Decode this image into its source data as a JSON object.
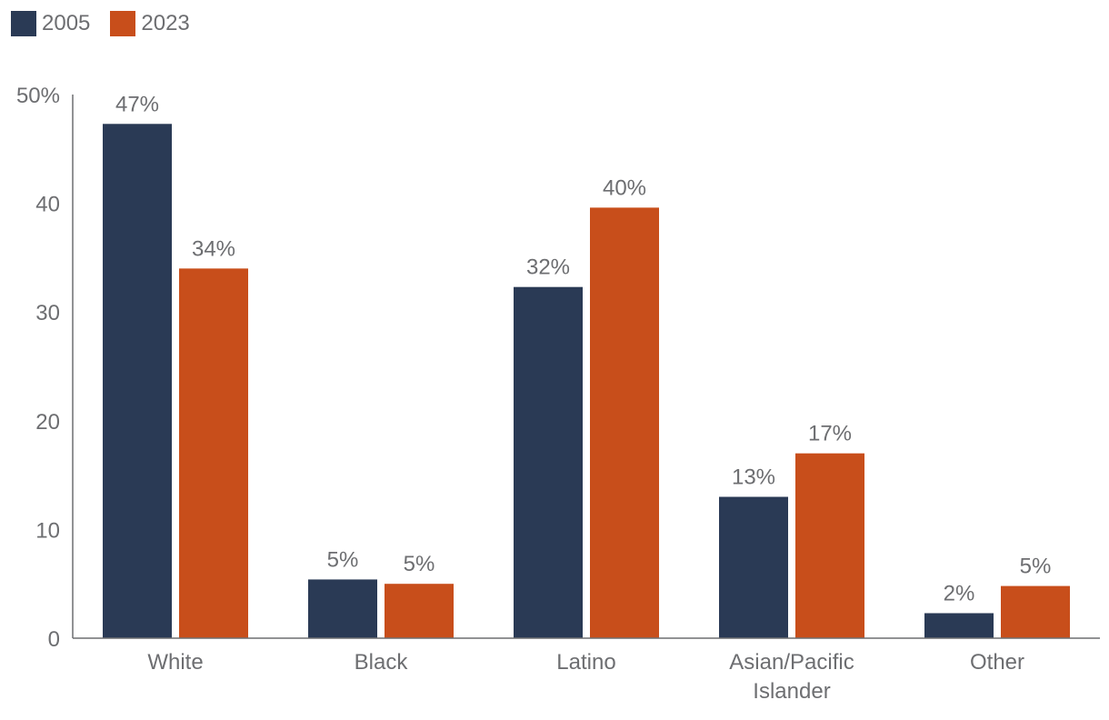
{
  "legend": [
    {
      "label": "2005",
      "color": "#2a3a55"
    },
    {
      "label": "2023",
      "color": "#c84e1b"
    }
  ],
  "chart_data": {
    "type": "bar",
    "categories": [
      [
        "White"
      ],
      [
        "Black"
      ],
      [
        "Latino"
      ],
      [
        "Asian/Pacific",
        "Islander"
      ],
      [
        "Other"
      ]
    ],
    "series": [
      {
        "name": "2005",
        "color": "#2a3a55",
        "values": [
          47.3,
          5.4,
          32.3,
          13.0,
          2.3
        ],
        "labels": [
          "47%",
          "5%",
          "32%",
          "13%",
          "2%"
        ]
      },
      {
        "name": "2023",
        "color": "#c84e1b",
        "values": [
          34.0,
          5.0,
          39.6,
          17.0,
          4.8
        ],
        "labels": [
          "34%",
          "5%",
          "40%",
          "17%",
          "5%"
        ]
      }
    ],
    "ylim": [
      0,
      50
    ],
    "yticks": [
      0,
      10,
      20,
      30,
      40,
      50
    ],
    "ytick_labels": [
      "0",
      "10",
      "20",
      "30",
      "40",
      "50%"
    ],
    "title": "",
    "xlabel": "",
    "ylabel": "",
    "grid": false,
    "legend_position": "top-left"
  }
}
